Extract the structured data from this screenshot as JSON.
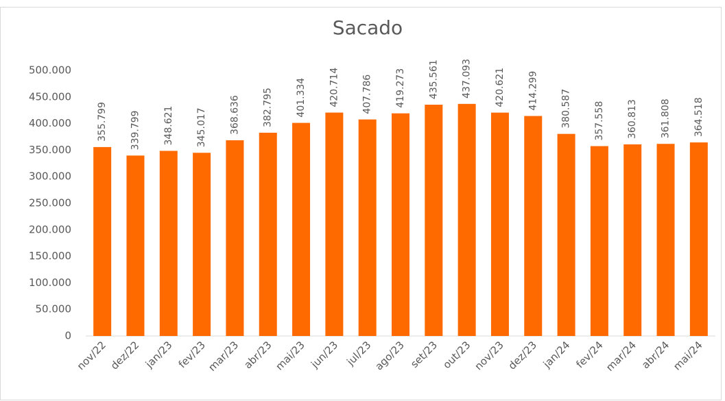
{
  "chart_data": {
    "type": "bar",
    "title": "Sacado",
    "categories": [
      "nov/22",
      "dez/22",
      "jan/23",
      "fev/23",
      "mar/23",
      "abr/23",
      "mai/23",
      "jun/23",
      "jul/23",
      "ago/23",
      "set/23",
      "out/23",
      "nov/23",
      "dez/23",
      "jan/24",
      "fev/24",
      "mar/24",
      "abr/24",
      "mai/24"
    ],
    "values": [
      355799,
      339799,
      348621,
      345017,
      368636,
      382795,
      401334,
      420714,
      407786,
      419273,
      435561,
      437093,
      420621,
      414299,
      380587,
      357558,
      360813,
      361808,
      364518
    ],
    "value_labels": [
      "355.799",
      "339.799",
      "348.621",
      "345.017",
      "368.636",
      "382.795",
      "401.334",
      "420.714",
      "407.786",
      "419.273",
      "435.561",
      "437.093",
      "420.621",
      "414.299",
      "380.587",
      "357.558",
      "360.813",
      "361.808",
      "364.518"
    ],
    "color": "#ff6a00",
    "ylim": [
      0,
      500000
    ],
    "yticks": [
      0,
      {
        "value": 50000,
        "label": "50.000"
      },
      {
        "value": 100000,
        "label": "100.000"
      },
      {
        "value": 150000,
        "label": "150.000"
      },
      {
        "value": 200000,
        "label": "200.000"
      },
      {
        "value": 250000,
        "label": "250.000"
      },
      {
        "value": 300000,
        "label": "300.000"
      },
      {
        "value": 350000,
        "label": "350.000"
      },
      {
        "value": 400000,
        "label": "400.000"
      },
      {
        "value": 450000,
        "label": "450.000"
      },
      {
        "value": 500000,
        "label": "500.000"
      }
    ],
    "grid": false
  }
}
